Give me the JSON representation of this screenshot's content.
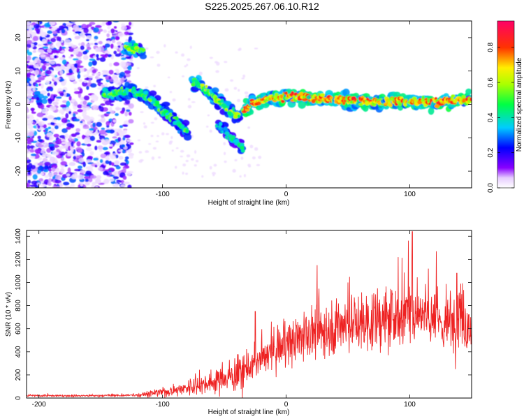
{
  "title": "S225.2025.267.06.10.R12",
  "colors": {
    "snr_line": "#ee2222",
    "axis": "#000000"
  },
  "chart_data": [
    {
      "type": "heatmap",
      "name": "spectrogram",
      "xlabel": "Height of straight line (km)",
      "ylabel": "Frequency (Hz)",
      "xlim": [
        -210,
        150
      ],
      "ylim": [
        -25,
        25
      ],
      "xticks": [
        -200,
        -100,
        0,
        100
      ],
      "yticks": [
        -20,
        -10,
        0,
        10,
        20
      ],
      "colorbar": {
        "label": "Normalized spectral amplitude",
        "range": [
          0,
          0.95
        ],
        "ticks": [
          0.0,
          0.2,
          0.4,
          0.6,
          0.8
        ]
      },
      "tracks": [
        {
          "name": "main-carrier",
          "points": [
            [
              -35,
              -2
            ],
            [
              -28,
              0
            ],
            [
              -20,
              1.5
            ],
            [
              0,
              2.5
            ],
            [
              20,
              2
            ],
            [
              40,
              1.5
            ],
            [
              60,
              0.8
            ],
            [
              80,
              0.8
            ],
            [
              100,
              1
            ],
            [
              120,
              0.8
            ],
            [
              150,
              1.5
            ]
          ],
          "amplitude": 0.75
        },
        {
          "name": "upper-branch",
          "points": [
            [
              -130,
              17
            ],
            [
              -115,
              16
            ]
          ],
          "amplitude": 0.55
        },
        {
          "name": "descending-branch",
          "points": [
            [
              -148,
              3
            ],
            [
              -125,
              4
            ],
            [
              -110,
              2
            ],
            [
              -100,
              -2
            ],
            [
              -90,
              -5
            ],
            [
              -80,
              -8
            ]
          ],
          "amplitude": 0.5
        },
        {
          "name": "second-branch",
          "points": [
            [
              -75,
              7
            ],
            [
              -60,
              3
            ],
            [
              -45,
              -2
            ],
            [
              -38,
              -4
            ]
          ],
          "amplitude": 0.55
        },
        {
          "name": "lower-branch",
          "points": [
            [
              -55,
              -6
            ],
            [
              -45,
              -10
            ],
            [
              -35,
              -13
            ]
          ],
          "amplitude": 0.4
        }
      ]
    },
    {
      "type": "line",
      "name": "snr",
      "xlabel": "Height of straight line (km)",
      "ylabel": "SNR (10 * v/v)",
      "xlim": [
        -210,
        150
      ],
      "ylim": [
        0,
        1450
      ],
      "xticks": [
        -200,
        -100,
        0,
        100
      ],
      "yticks": [
        0,
        200,
        400,
        600,
        800,
        1000,
        1200,
        1400
      ],
      "envelope_x": [
        -210,
        -150,
        -120,
        -100,
        -80,
        -60,
        -40,
        -25,
        -10,
        0,
        20,
        40,
        60,
        80,
        100,
        110,
        120,
        130,
        140,
        150
      ],
      "envelope_y": [
        20,
        20,
        25,
        50,
        90,
        140,
        200,
        300,
        400,
        470,
        560,
        620,
        650,
        680,
        720,
        760,
        700,
        600,
        760,
        600
      ],
      "peaks": [
        [
          -25,
          750
        ],
        [
          25,
          1150
        ],
        [
          50,
          1000
        ],
        [
          102,
          1440
        ],
        [
          115,
          1120
        ],
        [
          138,
          1080
        ]
      ]
    }
  ]
}
